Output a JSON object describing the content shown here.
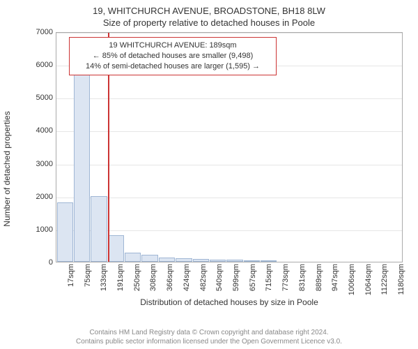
{
  "title_main": "19, WHITCHURCH AVENUE, BROADSTONE, BH18 8LW",
  "title_sub": "Size of property relative to detached houses in Poole",
  "chart": {
    "type": "histogram",
    "y_label": "Number of detached properties",
    "x_label": "Distribution of detached houses by size in Poole",
    "y_max": 7000,
    "y_tick_step": 1000,
    "y_ticks": [
      0,
      1000,
      2000,
      3000,
      4000,
      5000,
      6000,
      7000
    ],
    "x_tick_labels": [
      "17sqm",
      "75sqm",
      "133sqm",
      "191sqm",
      "250sqm",
      "308sqm",
      "366sqm",
      "424sqm",
      "482sqm",
      "540sqm",
      "599sqm",
      "657sqm",
      "715sqm",
      "773sqm",
      "831sqm",
      "889sqm",
      "947sqm",
      "1006sqm",
      "1064sqm",
      "1122sqm",
      "1180sqm"
    ],
    "bar_values": [
      1800,
      5800,
      2000,
      800,
      270,
      220,
      130,
      100,
      80,
      60,
      60,
      50,
      40,
      0,
      0,
      0,
      0,
      0,
      0,
      0,
      0
    ],
    "bar_fill": "#dce5f2",
    "bar_border": "#9fb6d4",
    "grid_color": "#e6e6e6",
    "axis_color": "#aaaaaa",
    "ref_line_color": "#cc3333",
    "ref_line_position_sqm": 189,
    "x_min_sqm": 17,
    "x_max_sqm": 1180,
    "info_box": {
      "line1": "19 WHITCHURCH AVENUE: 189sqm",
      "line2": "← 85% of detached houses are smaller (9,498)",
      "line3": "14% of semi-detached houses are larger (1,595) →",
      "border_color": "#cc3333"
    }
  },
  "footer": {
    "line1": "Contains HM Land Registry data © Crown copyright and database right 2024.",
    "line2": "Contains public sector information licensed under the Open Government Licence v3.0."
  }
}
